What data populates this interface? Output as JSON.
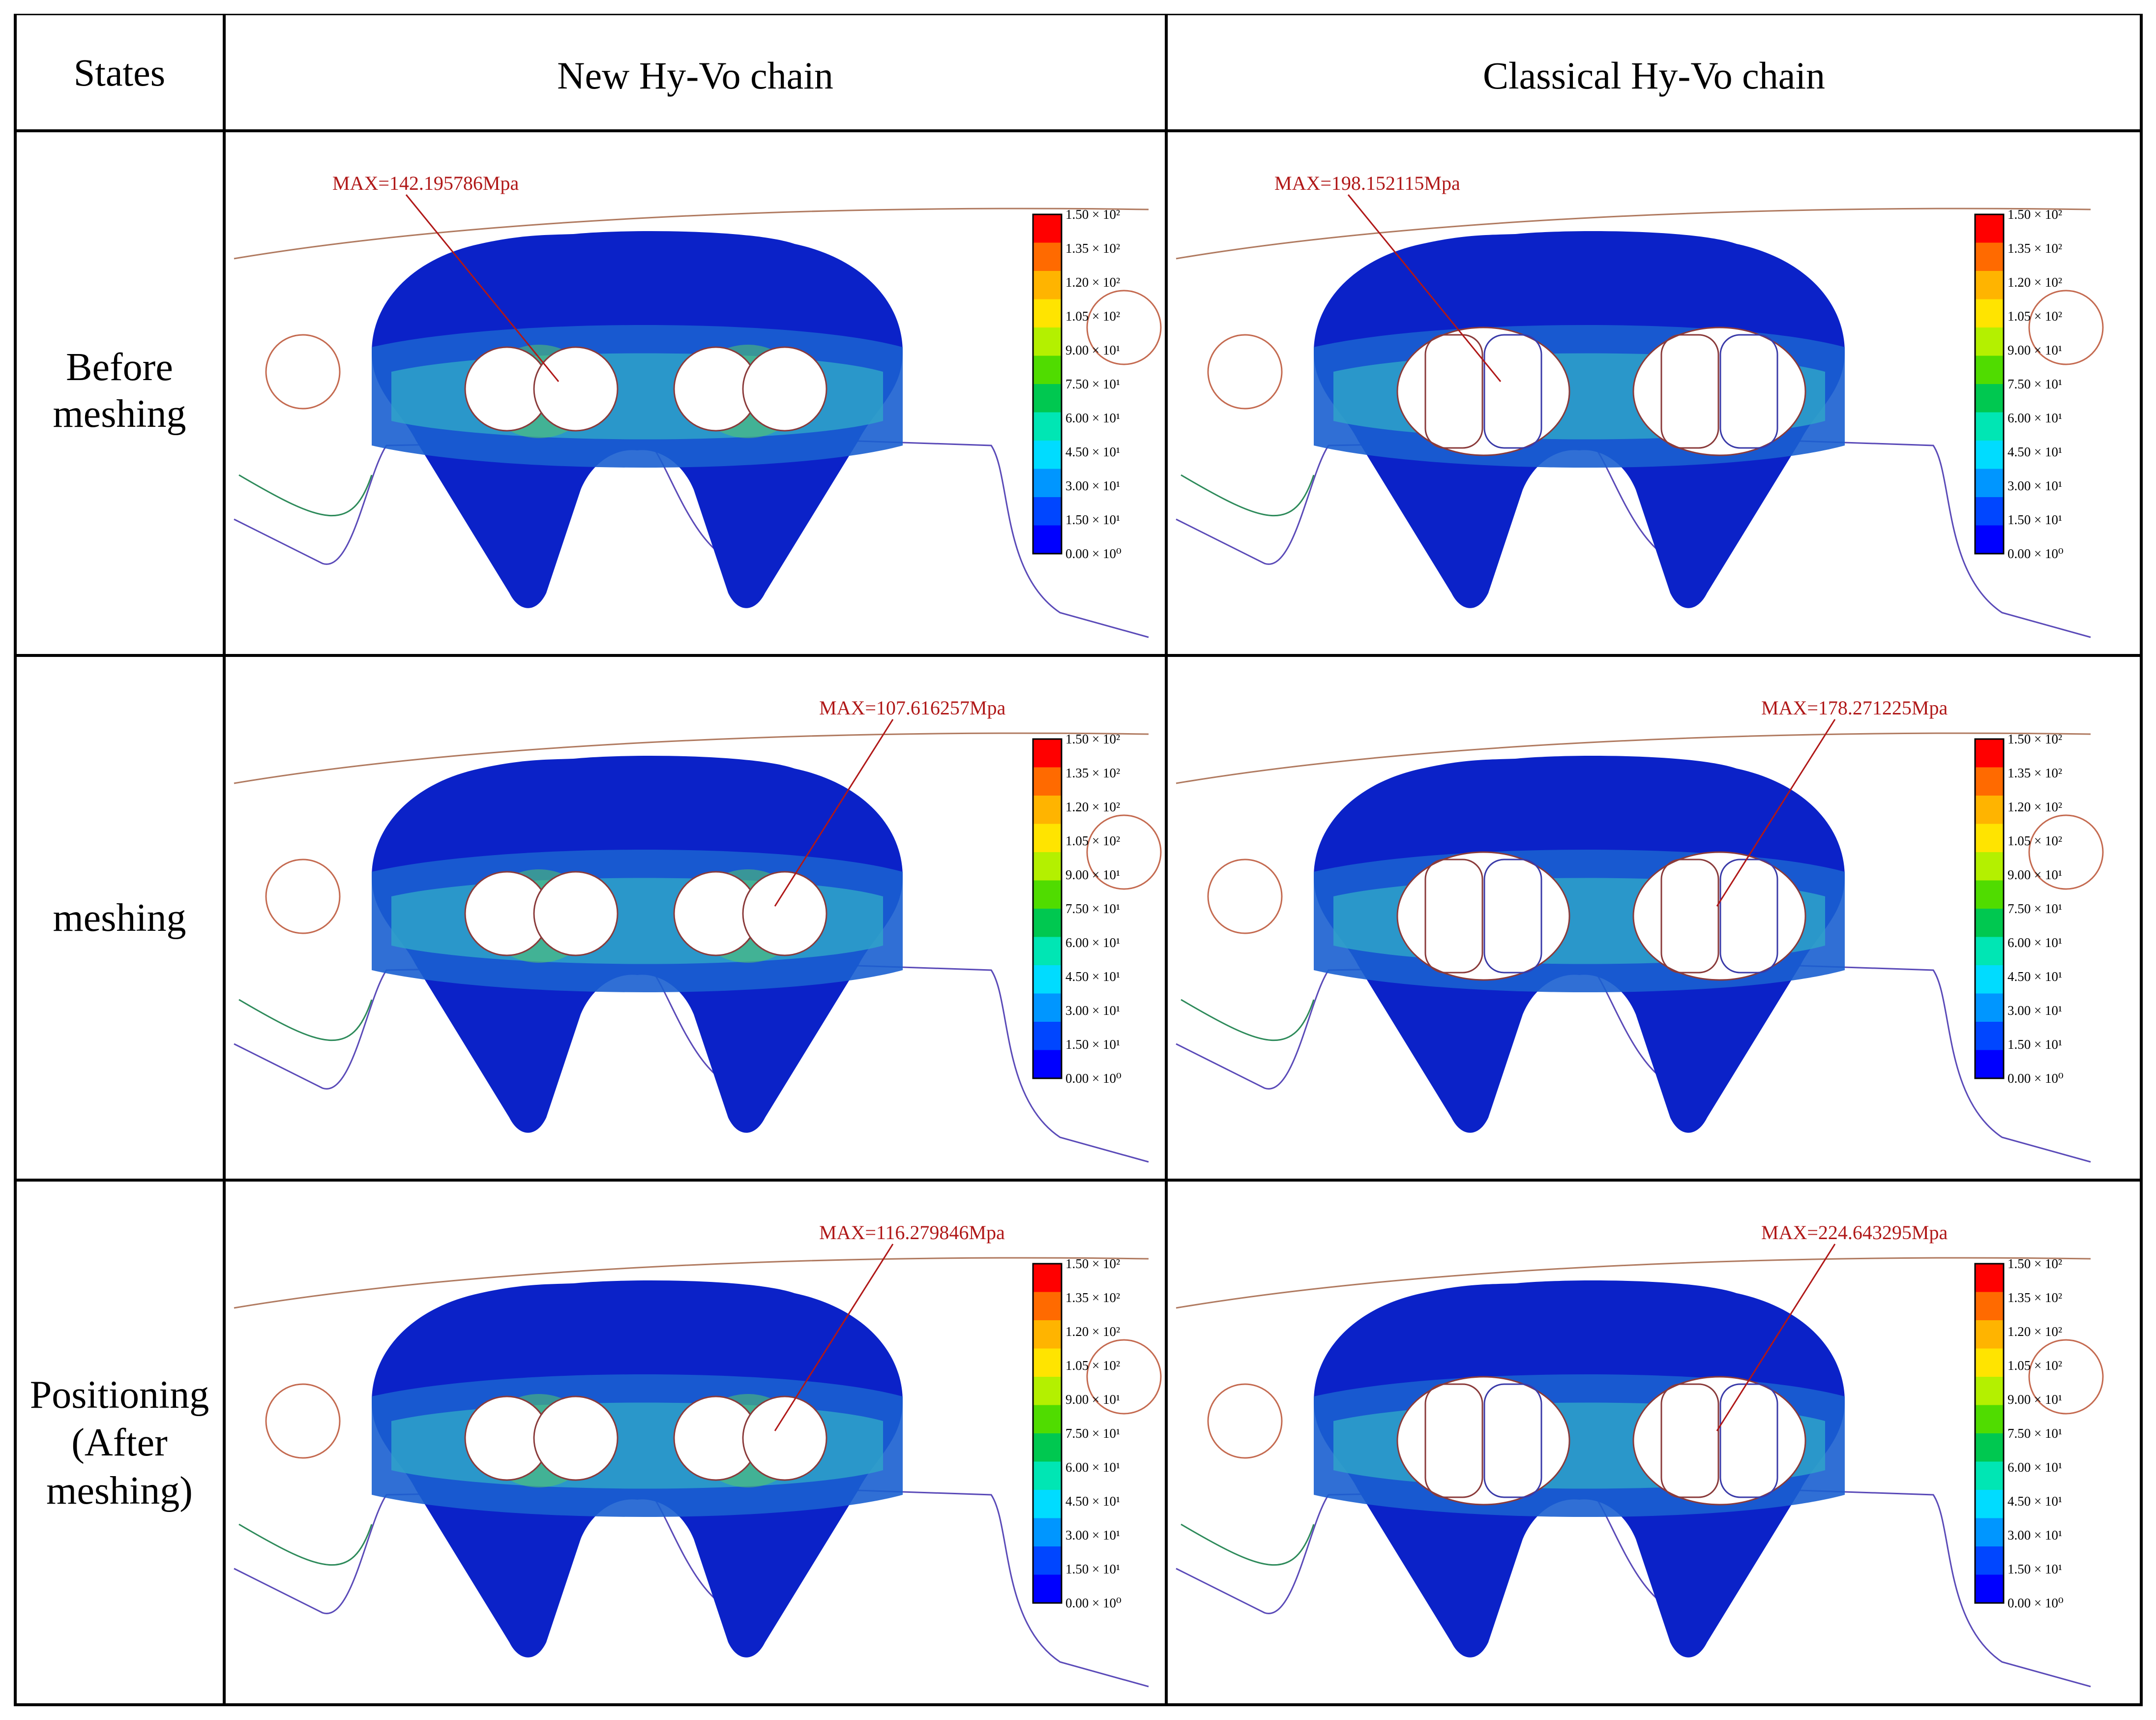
{
  "table": {
    "header": {
      "states": "States",
      "new": "New Hy-Vo chain",
      "classical": "Classical Hy-Vo chain"
    },
    "rows": [
      {
        "state": [
          "Before",
          "meshing"
        ],
        "new_max": "MAX=142.195786Mpa",
        "classical_max": "MAX=198.152115Mpa"
      },
      {
        "state": [
          "meshing"
        ],
        "new_max": "MAX=107.616257Mpa",
        "classical_max": "MAX=178.271225Mpa"
      },
      {
        "state": [
          "Positioning",
          "(After",
          "meshing)"
        ],
        "new_max": "MAX=116.279846Mpa",
        "classical_max": "MAX=224.643295Mpa"
      }
    ]
  },
  "colorbar": {
    "ticks": [
      "1.50 × 10²",
      "1.35 × 10²",
      "1.20 × 10²",
      "1.05 × 10²",
      "9.00 × 10¹",
      "7.50 × 10¹",
      "6.00 × 10¹",
      "4.50 × 10¹",
      "3.00 × 10¹",
      "1.50 × 10¹",
      "0.00 × 10⁰"
    ],
    "colors": [
      "#ff0000",
      "#ff6a00",
      "#ffb400",
      "#ffe400",
      "#b4f000",
      "#50dc00",
      "#00c850",
      "#00e6b4",
      "#00dcff",
      "#0096ff",
      "#0046ff",
      "#0000ff"
    ]
  },
  "palette": {
    "plate_base": "#0b22c8",
    "plate_mid": "#1a5fd0",
    "plate_light": "#2fa6c8",
    "plate_hot": "#55c86a",
    "max_label": "#b01818"
  }
}
